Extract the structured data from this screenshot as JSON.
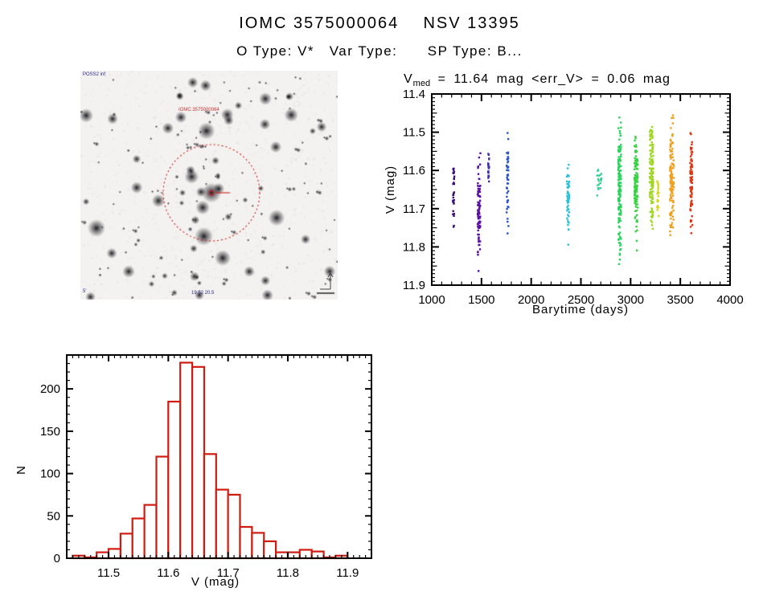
{
  "header": {
    "title": "IOMC 3575000064    NSV 13395",
    "subtitle": "O Type: V*   Var Type:      SP Type: B..."
  },
  "stats": {
    "var_name": "V",
    "var_sub": "med",
    "text": " = 11.64 mag <err_V> = 0.06 mag"
  },
  "finding_chart": {
    "survey_label": "POSS2 inf",
    "target_label": "IOMC 3575000064",
    "coordinates_label": "19 52 20.5",
    "scale_label": "5'",
    "marker_color": "#cc2222",
    "star_count": 150,
    "seed": 12
  },
  "chart_data": [
    {
      "type": "scatter",
      "title": "V_med = 11.64 mag <err_V> = 0.06 mag",
      "xlabel": "Barytime (days)",
      "ylabel": "V (mag)",
      "xlim": [
        1000,
        4000
      ],
      "ylim": [
        11.4,
        11.9
      ],
      "y_inverted_magnitude_axis": true,
      "xticks": [
        1000,
        1500,
        2000,
        2500,
        3000,
        3500,
        4000
      ],
      "yticks": [
        11.4,
        11.5,
        11.6,
        11.7,
        11.8,
        11.9
      ],
      "x_minor_step": 100,
      "y_minor_step": 0.01,
      "grid": false,
      "legend": false,
      "marker": "square",
      "marker_px": 2.4,
      "series_note": "observing epochs colored by time (rainbow colormap)",
      "clusters": [
        {
          "t": 1220,
          "t_width": 14,
          "v_mean": 11.645,
          "v_sigma": 0.05,
          "v_min": 11.575,
          "v_max": 11.775,
          "n": 30,
          "color": "#3a0d78"
        },
        {
          "t": 1475,
          "t_width": 28,
          "v_mean": 11.71,
          "v_sigma": 0.06,
          "v_min": 11.55,
          "v_max": 11.9,
          "n": 90,
          "color": "#5a0fa5"
        },
        {
          "t": 1572,
          "t_width": 12,
          "v_mean": 11.6,
          "v_sigma": 0.028,
          "v_min": 11.555,
          "v_max": 11.645,
          "n": 18,
          "color": "#3c2fb0"
        },
        {
          "t": 1762,
          "t_width": 20,
          "v_mean": 11.63,
          "v_sigma": 0.08,
          "v_min": 11.49,
          "v_max": 11.82,
          "n": 45,
          "color": "#2c55cc"
        },
        {
          "t": 2370,
          "t_width": 26,
          "v_mean": 11.665,
          "v_sigma": 0.06,
          "v_min": 11.58,
          "v_max": 11.83,
          "n": 55,
          "color": "#2fc2d8"
        },
        {
          "t": 2685,
          "t_width": 45,
          "v_mean": 11.63,
          "v_sigma": 0.025,
          "v_min": 11.59,
          "v_max": 11.675,
          "n": 18,
          "color": "#35cf95"
        },
        {
          "t": 2890,
          "t_width": 28,
          "v_mean": 11.66,
          "v_sigma": 0.09,
          "v_min": 11.46,
          "v_max": 11.9,
          "n": 150,
          "color": "#2bd45e"
        },
        {
          "t": 3055,
          "t_width": 34,
          "v_mean": 11.63,
          "v_sigma": 0.07,
          "v_min": 11.51,
          "v_max": 11.83,
          "n": 130,
          "color": "#38d243"
        },
        {
          "t": 3210,
          "t_width": 36,
          "v_mean": 11.62,
          "v_sigma": 0.075,
          "v_min": 11.44,
          "v_max": 11.86,
          "n": 120,
          "color": "#9fd622"
        },
        {
          "t": 3275,
          "t_width": 16,
          "v_mean": 11.66,
          "v_sigma": 0.03,
          "v_min": 11.615,
          "v_max": 11.725,
          "n": 22,
          "color": "#d8d51e"
        },
        {
          "t": 3415,
          "t_width": 38,
          "v_mean": 11.62,
          "v_sigma": 0.07,
          "v_min": 11.44,
          "v_max": 11.79,
          "n": 120,
          "color": "#f2a01c"
        },
        {
          "t": 3610,
          "t_width": 22,
          "v_mean": 11.635,
          "v_sigma": 0.055,
          "v_min": 11.48,
          "v_max": 11.78,
          "n": 80,
          "color": "#dd3614"
        }
      ]
    },
    {
      "type": "bar",
      "style": "histogram-outline",
      "xlabel": "V (mag)",
      "ylabel": "N",
      "bin_start": 11.44,
      "bin_width": 0.02,
      "counts": [
        3,
        1,
        7,
        11,
        29,
        47,
        63,
        120,
        185,
        231,
        226,
        123,
        81,
        75,
        37,
        30,
        20,
        7,
        7,
        10,
        8,
        1,
        3
      ],
      "xticks": [
        11.5,
        11.6,
        11.7,
        11.8,
        11.9
      ],
      "yticks": [
        0,
        50,
        100,
        150,
        200
      ],
      "xlim": [
        11.43,
        11.94
      ],
      "ylim": [
        0,
        240
      ],
      "x_minor_step": 0.01,
      "y_minor_step": 10,
      "color": "#d01c10",
      "fill": "#ffffff",
      "grid": false,
      "legend": false
    }
  ]
}
